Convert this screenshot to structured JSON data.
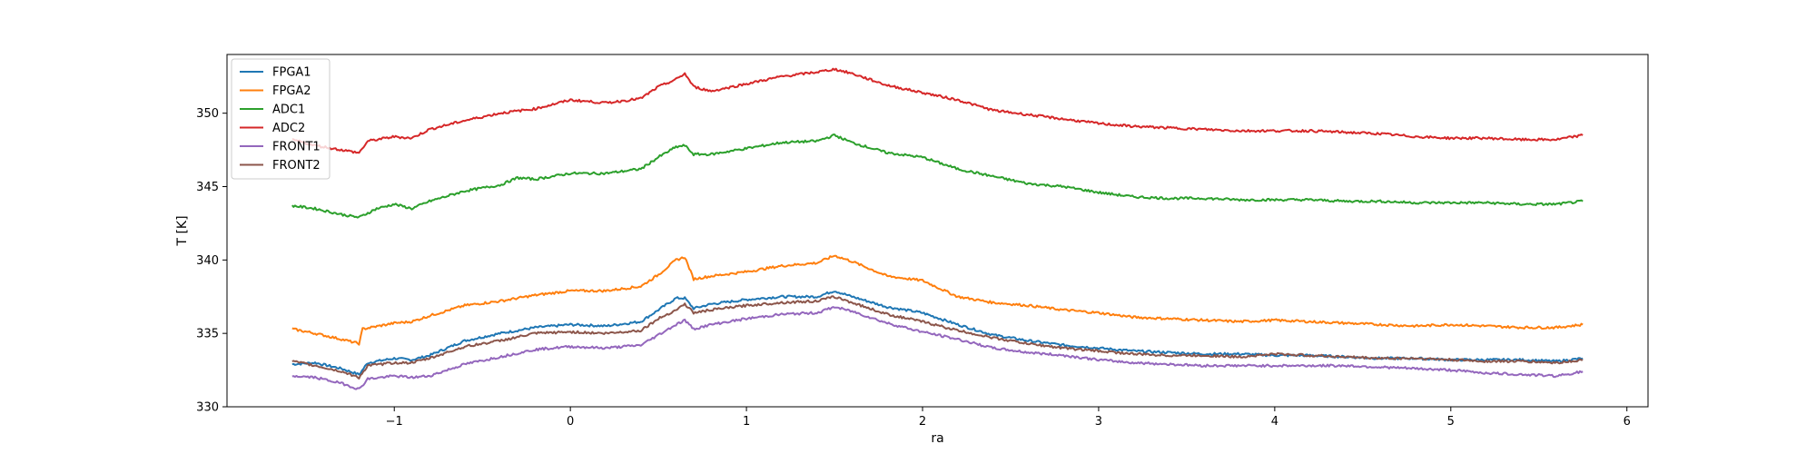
{
  "chart_data": {
    "type": "line",
    "title": "",
    "xlabel": "ra",
    "ylabel": "T [K]",
    "xlim": [
      -1.95,
      6.12
    ],
    "ylim": [
      330,
      354
    ],
    "xticks": [
      -1,
      0,
      1,
      2,
      3,
      4,
      5,
      6
    ],
    "xtick_labels": [
      "−1",
      "0",
      "1",
      "2",
      "3",
      "4",
      "5",
      "6"
    ],
    "yticks": [
      330,
      335,
      340,
      345,
      350
    ],
    "ytick_labels": [
      "330",
      "335",
      "340",
      "345",
      "350"
    ],
    "grid": false,
    "legend_position": "upper-left",
    "series": [
      {
        "name": "FPGA1",
        "color": "#1f77b4",
        "x": [
          -1.58,
          -1.45,
          -1.3,
          -1.2,
          -1.15,
          -1.0,
          -0.9,
          -0.8,
          -0.6,
          -0.4,
          -0.2,
          0.0,
          0.2,
          0.4,
          0.5,
          0.6,
          0.65,
          0.7,
          0.8,
          1.0,
          1.2,
          1.4,
          1.5,
          1.6,
          1.8,
          2.0,
          2.2,
          2.4,
          2.6,
          2.8,
          3.0,
          3.2,
          3.4,
          3.6,
          3.8,
          4.0,
          4.2,
          4.4,
          4.6,
          4.8,
          5.0,
          5.2,
          5.4,
          5.6,
          5.75
        ],
        "y": [
          332.9,
          333.0,
          332.6,
          332.2,
          333.0,
          333.3,
          333.2,
          333.5,
          334.5,
          335.0,
          335.4,
          335.6,
          335.5,
          335.8,
          336.6,
          337.4,
          337.4,
          336.7,
          337.0,
          337.3,
          337.5,
          337.5,
          337.9,
          337.5,
          336.8,
          336.4,
          335.6,
          334.9,
          334.5,
          334.2,
          334.0,
          333.8,
          333.7,
          333.6,
          333.6,
          333.5,
          333.5,
          333.4,
          333.3,
          333.3,
          333.2,
          333.2,
          333.2,
          333.1,
          333.3
        ]
      },
      {
        "name": "FPGA2",
        "color": "#ff7f0e",
        "x": [
          -1.58,
          -1.45,
          -1.3,
          -1.2,
          -1.18,
          -1.0,
          -0.9,
          -0.8,
          -0.6,
          -0.4,
          -0.2,
          0.0,
          0.2,
          0.4,
          0.5,
          0.6,
          0.65,
          0.7,
          0.8,
          1.0,
          1.2,
          1.4,
          1.5,
          1.6,
          1.8,
          2.0,
          2.2,
          2.4,
          2.6,
          2.8,
          3.0,
          3.2,
          3.4,
          3.6,
          3.8,
          4.0,
          4.2,
          4.4,
          4.6,
          4.8,
          5.0,
          5.2,
          5.4,
          5.6,
          5.75
        ],
        "y": [
          335.3,
          335.0,
          334.6,
          334.3,
          335.3,
          335.7,
          335.8,
          336.2,
          336.9,
          337.2,
          337.6,
          337.9,
          337.9,
          338.2,
          339.0,
          340.0,
          340.2,
          338.7,
          338.9,
          339.2,
          339.6,
          339.8,
          340.3,
          339.9,
          338.9,
          338.6,
          337.5,
          337.1,
          336.9,
          336.6,
          336.4,
          336.1,
          336.0,
          335.9,
          335.8,
          335.9,
          335.8,
          335.7,
          335.6,
          335.5,
          335.6,
          335.5,
          335.4,
          335.4,
          335.6
        ]
      },
      {
        "name": "ADC1",
        "color": "#2ca02c",
        "x": [
          -1.58,
          -1.45,
          -1.3,
          -1.2,
          -1.1,
          -1.0,
          -0.9,
          -0.8,
          -0.6,
          -0.4,
          -0.3,
          -0.2,
          0.0,
          0.2,
          0.4,
          0.5,
          0.6,
          0.65,
          0.7,
          0.8,
          1.0,
          1.2,
          1.4,
          1.5,
          1.6,
          1.8,
          2.0,
          2.2,
          2.4,
          2.6,
          2.8,
          3.0,
          3.2,
          3.4,
          3.6,
          3.8,
          4.0,
          4.2,
          4.4,
          4.6,
          4.8,
          5.0,
          5.2,
          5.4,
          5.6,
          5.75
        ],
        "y": [
          343.7,
          343.5,
          343.1,
          342.9,
          343.5,
          343.8,
          343.5,
          344.0,
          344.7,
          345.1,
          345.6,
          345.5,
          345.9,
          345.9,
          346.2,
          347.0,
          347.7,
          347.8,
          347.2,
          347.2,
          347.6,
          348.0,
          348.1,
          348.5,
          348.0,
          347.3,
          347.0,
          346.2,
          345.7,
          345.2,
          345.0,
          344.6,
          344.3,
          344.2,
          344.2,
          344.1,
          344.1,
          344.1,
          344.0,
          344.0,
          343.9,
          343.9,
          343.9,
          343.8,
          343.8,
          344.0
        ]
      },
      {
        "name": "ADC2",
        "color": "#d62728",
        "x": [
          -1.58,
          -1.45,
          -1.3,
          -1.2,
          -1.15,
          -1.0,
          -0.9,
          -0.8,
          -0.6,
          -0.4,
          -0.2,
          0.0,
          0.2,
          0.4,
          0.5,
          0.6,
          0.65,
          0.7,
          0.8,
          1.0,
          1.2,
          1.4,
          1.5,
          1.6,
          1.8,
          2.0,
          2.2,
          2.4,
          2.6,
          2.8,
          3.0,
          3.2,
          3.4,
          3.6,
          3.8,
          4.0,
          4.2,
          4.4,
          4.6,
          4.8,
          5.0,
          5.2,
          5.4,
          5.6,
          5.75
        ],
        "y": [
          348.2,
          347.8,
          347.5,
          347.3,
          348.1,
          348.4,
          348.3,
          348.9,
          349.5,
          350.0,
          350.3,
          350.9,
          350.7,
          351.0,
          351.8,
          352.3,
          352.7,
          351.8,
          351.5,
          352.0,
          352.5,
          352.8,
          353.0,
          352.7,
          351.9,
          351.4,
          350.9,
          350.2,
          349.9,
          349.6,
          349.3,
          349.1,
          349.0,
          348.9,
          348.8,
          348.8,
          348.8,
          348.7,
          348.6,
          348.4,
          348.3,
          348.3,
          348.2,
          348.2,
          348.5
        ]
      },
      {
        "name": "FRONT1",
        "color": "#9467bd",
        "x": [
          -1.58,
          -1.45,
          -1.3,
          -1.2,
          -1.15,
          -1.0,
          -0.9,
          -0.8,
          -0.6,
          -0.4,
          -0.2,
          0.0,
          0.2,
          0.4,
          0.5,
          0.6,
          0.65,
          0.7,
          0.8,
          1.0,
          1.2,
          1.4,
          1.5,
          1.6,
          1.8,
          2.0,
          2.2,
          2.4,
          2.6,
          2.8,
          3.0,
          3.2,
          3.4,
          3.6,
          3.8,
          4.0,
          4.2,
          4.4,
          4.6,
          4.8,
          5.0,
          5.2,
          5.4,
          5.6,
          5.75
        ],
        "y": [
          332.1,
          332.0,
          331.6,
          331.2,
          331.9,
          332.1,
          332.0,
          332.1,
          332.9,
          333.4,
          333.9,
          334.1,
          334.0,
          334.2,
          334.9,
          335.6,
          335.9,
          335.3,
          335.6,
          336.0,
          336.3,
          336.4,
          336.8,
          336.5,
          335.7,
          335.1,
          334.6,
          334.0,
          333.7,
          333.5,
          333.2,
          333.0,
          332.9,
          332.8,
          332.8,
          332.8,
          332.8,
          332.8,
          332.7,
          332.6,
          332.5,
          332.3,
          332.2,
          332.1,
          332.4
        ]
      },
      {
        "name": "FRONT2",
        "color": "#8c564b",
        "x": [
          -1.58,
          -1.45,
          -1.3,
          -1.2,
          -1.15,
          -1.0,
          -0.9,
          -0.8,
          -0.6,
          -0.4,
          -0.2,
          0.0,
          0.2,
          0.4,
          0.5,
          0.6,
          0.65,
          0.7,
          0.8,
          1.0,
          1.2,
          1.4,
          1.5,
          1.6,
          1.8,
          2.0,
          2.2,
          2.4,
          2.6,
          2.8,
          3.0,
          3.2,
          3.4,
          3.6,
          3.8,
          4.0,
          4.2,
          4.4,
          4.6,
          4.8,
          5.0,
          5.2,
          5.4,
          5.6,
          5.75
        ],
        "y": [
          333.1,
          332.8,
          332.4,
          332.0,
          332.8,
          333.0,
          333.0,
          333.3,
          334.1,
          334.5,
          335.0,
          335.1,
          335.0,
          335.2,
          336.0,
          336.6,
          337.0,
          336.4,
          336.6,
          336.9,
          337.1,
          337.2,
          337.5,
          337.1,
          336.3,
          335.8,
          335.2,
          334.7,
          334.3,
          334.0,
          333.8,
          333.6,
          333.5,
          333.5,
          333.4,
          333.6,
          333.5,
          333.4,
          333.3,
          333.3,
          333.2,
          333.1,
          333.1,
          333.0,
          333.2
        ]
      }
    ]
  }
}
